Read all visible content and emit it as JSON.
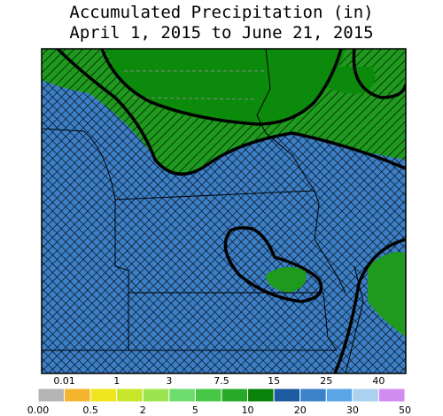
{
  "title": [
    "Accumulated Precipitation (in)",
    "April 1, 2015 to June 21, 2015"
  ],
  "legend": {
    "bounds": [
      {
        "value": 0,
        "label": "0.00"
      },
      0.01,
      0.5,
      1,
      2,
      3,
      5,
      7.5,
      10,
      15,
      20,
      25,
      30,
      40,
      50
    ],
    "colors": [
      "#b4b4b4",
      "#f5b42d",
      "#f0e61e",
      "#c8e628",
      "#9be650",
      "#6edc6e",
      "#46c846",
      "#28aa28",
      "#0a820a",
      "#1e5aa0",
      "#3c82c8",
      "#5aa5e6",
      "#aad2f0",
      "#d28cf0"
    ]
  }
}
